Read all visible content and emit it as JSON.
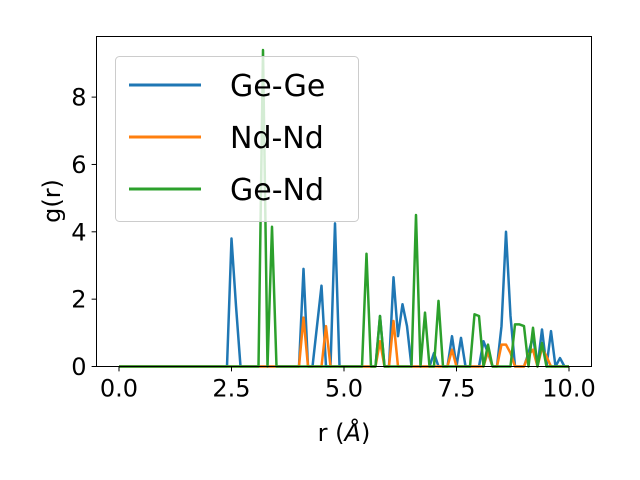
{
  "chart_data": {
    "type": "line",
    "xlabel": "r (Å)",
    "ylabel": "g(r)",
    "xlim": [
      -0.5,
      10.5
    ],
    "ylim": [
      0,
      9.8
    ],
    "xticks": [
      0.0,
      2.5,
      5.0,
      7.5,
      10.0
    ],
    "xtick_labels": [
      "0.0",
      "2.5",
      "5.0",
      "7.5",
      "10.0"
    ],
    "yticks": [
      0,
      2,
      4,
      6,
      8
    ],
    "ytick_labels": [
      "0",
      "2",
      "4",
      "6",
      "8"
    ],
    "grid": false,
    "legend_position": "top-left",
    "series": [
      {
        "name": "Ge-Ge",
        "color": "#1f77b4",
        "x": [
          0,
          2.4,
          2.5,
          2.6,
          2.7,
          4.0,
          4.1,
          4.2,
          4.3,
          4.5,
          4.6,
          4.7,
          4.8,
          4.9,
          5.0,
          5.6,
          5.7,
          5.8,
          5.9,
          6.0,
          6.1,
          6.2,
          6.3,
          6.4,
          6.5,
          6.6,
          6.9,
          7.0,
          7.1,
          7.2,
          7.3,
          7.4,
          7.5,
          7.6,
          7.7,
          7.8,
          7.9,
          8.0,
          8.1,
          8.2,
          8.3,
          8.4,
          8.5,
          8.6,
          8.7,
          8.8,
          8.9,
          9.0,
          9.1,
          9.2,
          9.3,
          9.4,
          9.5,
          9.6,
          9.7,
          9.8,
          9.9,
          10.0
        ],
        "y": [
          0,
          0,
          3.8,
          1.8,
          0,
          0,
          2.9,
          0,
          0,
          2.4,
          0,
          0,
          4.25,
          0,
          0,
          0,
          0,
          1.5,
          0,
          0,
          2.65,
          0.9,
          1.85,
          1.2,
          0,
          0,
          0,
          0.4,
          0,
          0,
          0,
          0.9,
          0,
          0.85,
          0,
          0,
          0,
          0,
          0.75,
          0.4,
          0,
          0,
          1.2,
          4.0,
          1.5,
          0,
          0,
          0,
          0.4,
          0.9,
          0,
          1.1,
          0,
          1.05,
          0,
          0.25,
          0,
          0
        ]
      },
      {
        "name": "Nd-Nd",
        "color": "#ff7f0e",
        "x": [
          0,
          4.0,
          4.1,
          4.2,
          4.3,
          4.5,
          4.6,
          4.7,
          5.6,
          5.7,
          5.8,
          5.9,
          6.0,
          6.1,
          6.2,
          6.3,
          7.3,
          7.4,
          7.5,
          8.0,
          8.1,
          8.2,
          8.3,
          8.4,
          8.5,
          8.6,
          8.7,
          8.8,
          9.0,
          9.1,
          9.2,
          9.3,
          9.4,
          9.5,
          9.6,
          10.0
        ],
        "y": [
          0,
          0,
          1.45,
          0,
          0,
          0,
          1.2,
          0,
          0,
          0,
          0.75,
          0,
          0,
          1.35,
          0,
          0,
          0,
          0.5,
          0,
          0,
          0,
          0.45,
          0,
          0,
          0.65,
          0.65,
          0.4,
          0,
          0,
          0.35,
          0.5,
          0,
          0.55,
          0.3,
          0,
          0
        ]
      },
      {
        "name": "Ge-Nd",
        "color": "#2ca02c",
        "x": [
          0,
          3.1,
          3.2,
          3.3,
          3.4,
          3.5,
          5.4,
          5.5,
          5.6,
          5.7,
          5.8,
          5.9,
          6.0,
          6.5,
          6.6,
          6.7,
          6.8,
          6.9,
          7.0,
          7.1,
          7.2,
          7.8,
          7.9,
          8.0,
          8.1,
          8.2,
          8.3,
          8.6,
          8.7,
          8.8,
          8.9,
          9.0,
          9.1,
          9.2,
          9.3,
          9.4,
          9.5,
          9.6,
          10.0
        ],
        "y": [
          0,
          0,
          9.4,
          0,
          4.15,
          0,
          0,
          3.35,
          0,
          0,
          1.5,
          0,
          0,
          0,
          4.5,
          0,
          1.6,
          0,
          0,
          1.95,
          0,
          0,
          1.55,
          1.5,
          0,
          0.65,
          0,
          0,
          0,
          1.25,
          1.25,
          1.2,
          0,
          1.15,
          0,
          0.7,
          0,
          0,
          0
        ]
      }
    ]
  }
}
